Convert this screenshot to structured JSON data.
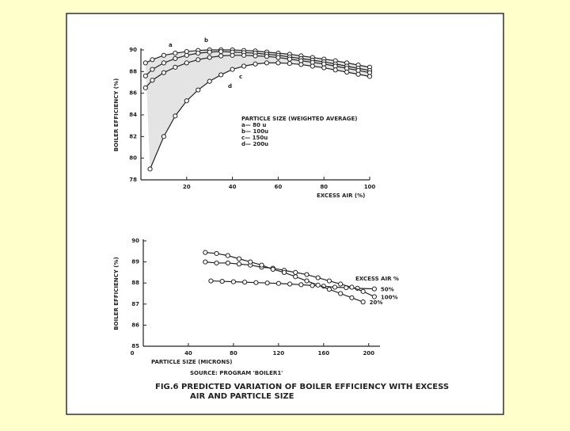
{
  "caption": "FIG.6   PREDICTED VARIATION OF BOILER EFFICIENCY WITH EXCESS AIR AND PARTICLE SIZE",
  "chart_data": [
    {
      "type": "line",
      "ylabel": "BOILER EFFICIENCY (%)",
      "xlabel": "EXCESS AIR (%)",
      "xlim": [
        0,
        100
      ],
      "xticks": [
        20,
        40,
        60,
        80,
        100
      ],
      "ylim": [
        78,
        90
      ],
      "yticks": [
        78,
        80,
        82,
        84,
        86,
        88,
        90
      ],
      "legend_title": "PARTICLE SIZE (WEIGHTED AVERAGE)",
      "shaded": true,
      "series": [
        {
          "name": "a— 80 u",
          "curve_label": "a",
          "color": "#222222",
          "x": [
            2,
            5,
            10,
            15,
            20,
            25,
            30,
            35,
            40,
            45,
            50,
            55,
            60,
            65,
            70,
            75,
            80,
            85,
            90,
            95,
            100
          ],
          "values": [
            88.8,
            89.1,
            89.5,
            89.7,
            89.85,
            89.95,
            90.0,
            90.0,
            90.0,
            89.95,
            89.9,
            89.8,
            89.7,
            89.6,
            89.45,
            89.3,
            89.15,
            89.0,
            88.8,
            88.6,
            88.4
          ]
        },
        {
          "name": "b— 100u",
          "curve_label": "b",
          "color": "#222222",
          "x": [
            2,
            5,
            10,
            15,
            20,
            25,
            30,
            35,
            40,
            45,
            50,
            55,
            60,
            65,
            70,
            75,
            80,
            85,
            90,
            95,
            100
          ],
          "values": [
            87.6,
            88.2,
            88.8,
            89.2,
            89.5,
            89.7,
            89.8,
            89.85,
            89.8,
            89.75,
            89.7,
            89.6,
            89.5,
            89.35,
            89.2,
            89.05,
            88.9,
            88.7,
            88.5,
            88.3,
            88.1
          ]
        },
        {
          "name": "c— 150u",
          "curve_label": "c",
          "color": "#222222",
          "x": [
            2,
            5,
            10,
            15,
            20,
            25,
            30,
            35,
            40,
            45,
            50,
            55,
            60,
            65,
            70,
            75,
            80,
            85,
            90,
            95,
            100
          ],
          "values": [
            86.5,
            87.2,
            87.9,
            88.4,
            88.8,
            89.1,
            89.3,
            89.45,
            89.5,
            89.5,
            89.45,
            89.4,
            89.3,
            89.15,
            89.0,
            88.85,
            88.7,
            88.5,
            88.3,
            88.1,
            87.9
          ]
        },
        {
          "name": "d— 200u",
          "curve_label": "d",
          "color": "#222222",
          "x": [
            4,
            10,
            15,
            20,
            25,
            30,
            35,
            40,
            45,
            50,
            55,
            60,
            65,
            70,
            75,
            80,
            85,
            90,
            95,
            100
          ],
          "values": [
            79.0,
            82.0,
            83.9,
            85.3,
            86.3,
            87.1,
            87.7,
            88.2,
            88.5,
            88.7,
            88.8,
            88.8,
            88.75,
            88.65,
            88.5,
            88.35,
            88.15,
            87.95,
            87.75,
            87.55
          ]
        }
      ]
    },
    {
      "type": "line",
      "ylabel": "BOILER EFFICIENCY (%)",
      "xlabel": "PARTICLE SIZE (MICRONS)",
      "source": "SOURCE: PROGRAM 'BOILER1'",
      "xlim": [
        0,
        210
      ],
      "xticks": [
        0,
        40,
        80,
        120,
        160,
        200
      ],
      "ylim": [
        85,
        90
      ],
      "yticks": [
        85,
        86,
        87,
        88,
        89,
        90
      ],
      "legend_title": "EXCESS AIR %",
      "series": [
        {
          "name": "50%",
          "color": "#222222",
          "x": [
            60,
            70,
            80,
            90,
            100,
            110,
            120,
            130,
            140,
            150,
            160,
            170,
            180,
            190,
            205
          ],
          "values": [
            88.1,
            88.08,
            88.06,
            88.04,
            88.02,
            88.0,
            87.98,
            87.95,
            87.92,
            87.88,
            87.85,
            87.8,
            87.78,
            87.75,
            87.72
          ]
        },
        {
          "name": "100%",
          "color": "#222222",
          "x": [
            55,
            65,
            75,
            85,
            95,
            105,
            115,
            125,
            135,
            145,
            155,
            165,
            175,
            185,
            195,
            205
          ],
          "values": [
            89.0,
            88.95,
            88.95,
            88.9,
            88.85,
            88.75,
            88.7,
            88.6,
            88.5,
            88.4,
            88.25,
            88.1,
            87.95,
            87.8,
            87.6,
            87.35
          ]
        },
        {
          "name": "20%",
          "color": "#222222",
          "x": [
            55,
            65,
            75,
            85,
            95,
            105,
            115,
            125,
            135,
            145,
            155,
            165,
            175,
            185,
            195
          ],
          "values": [
            89.45,
            89.4,
            89.3,
            89.15,
            89.0,
            88.85,
            88.65,
            88.5,
            88.3,
            88.1,
            87.9,
            87.7,
            87.5,
            87.3,
            87.1
          ]
        }
      ]
    }
  ]
}
